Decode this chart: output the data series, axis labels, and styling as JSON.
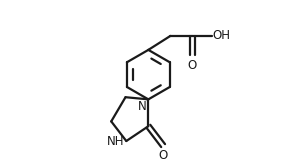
{
  "bg_color": "#ffffff",
  "line_color": "#1a1a1a",
  "line_width": 1.6,
  "font_size": 8.5,
  "figsize": [
    2.94,
    1.64
  ],
  "dpi": 100,
  "xlim": [
    0,
    9.5
  ],
  "ylim": [
    0,
    5.8
  ]
}
